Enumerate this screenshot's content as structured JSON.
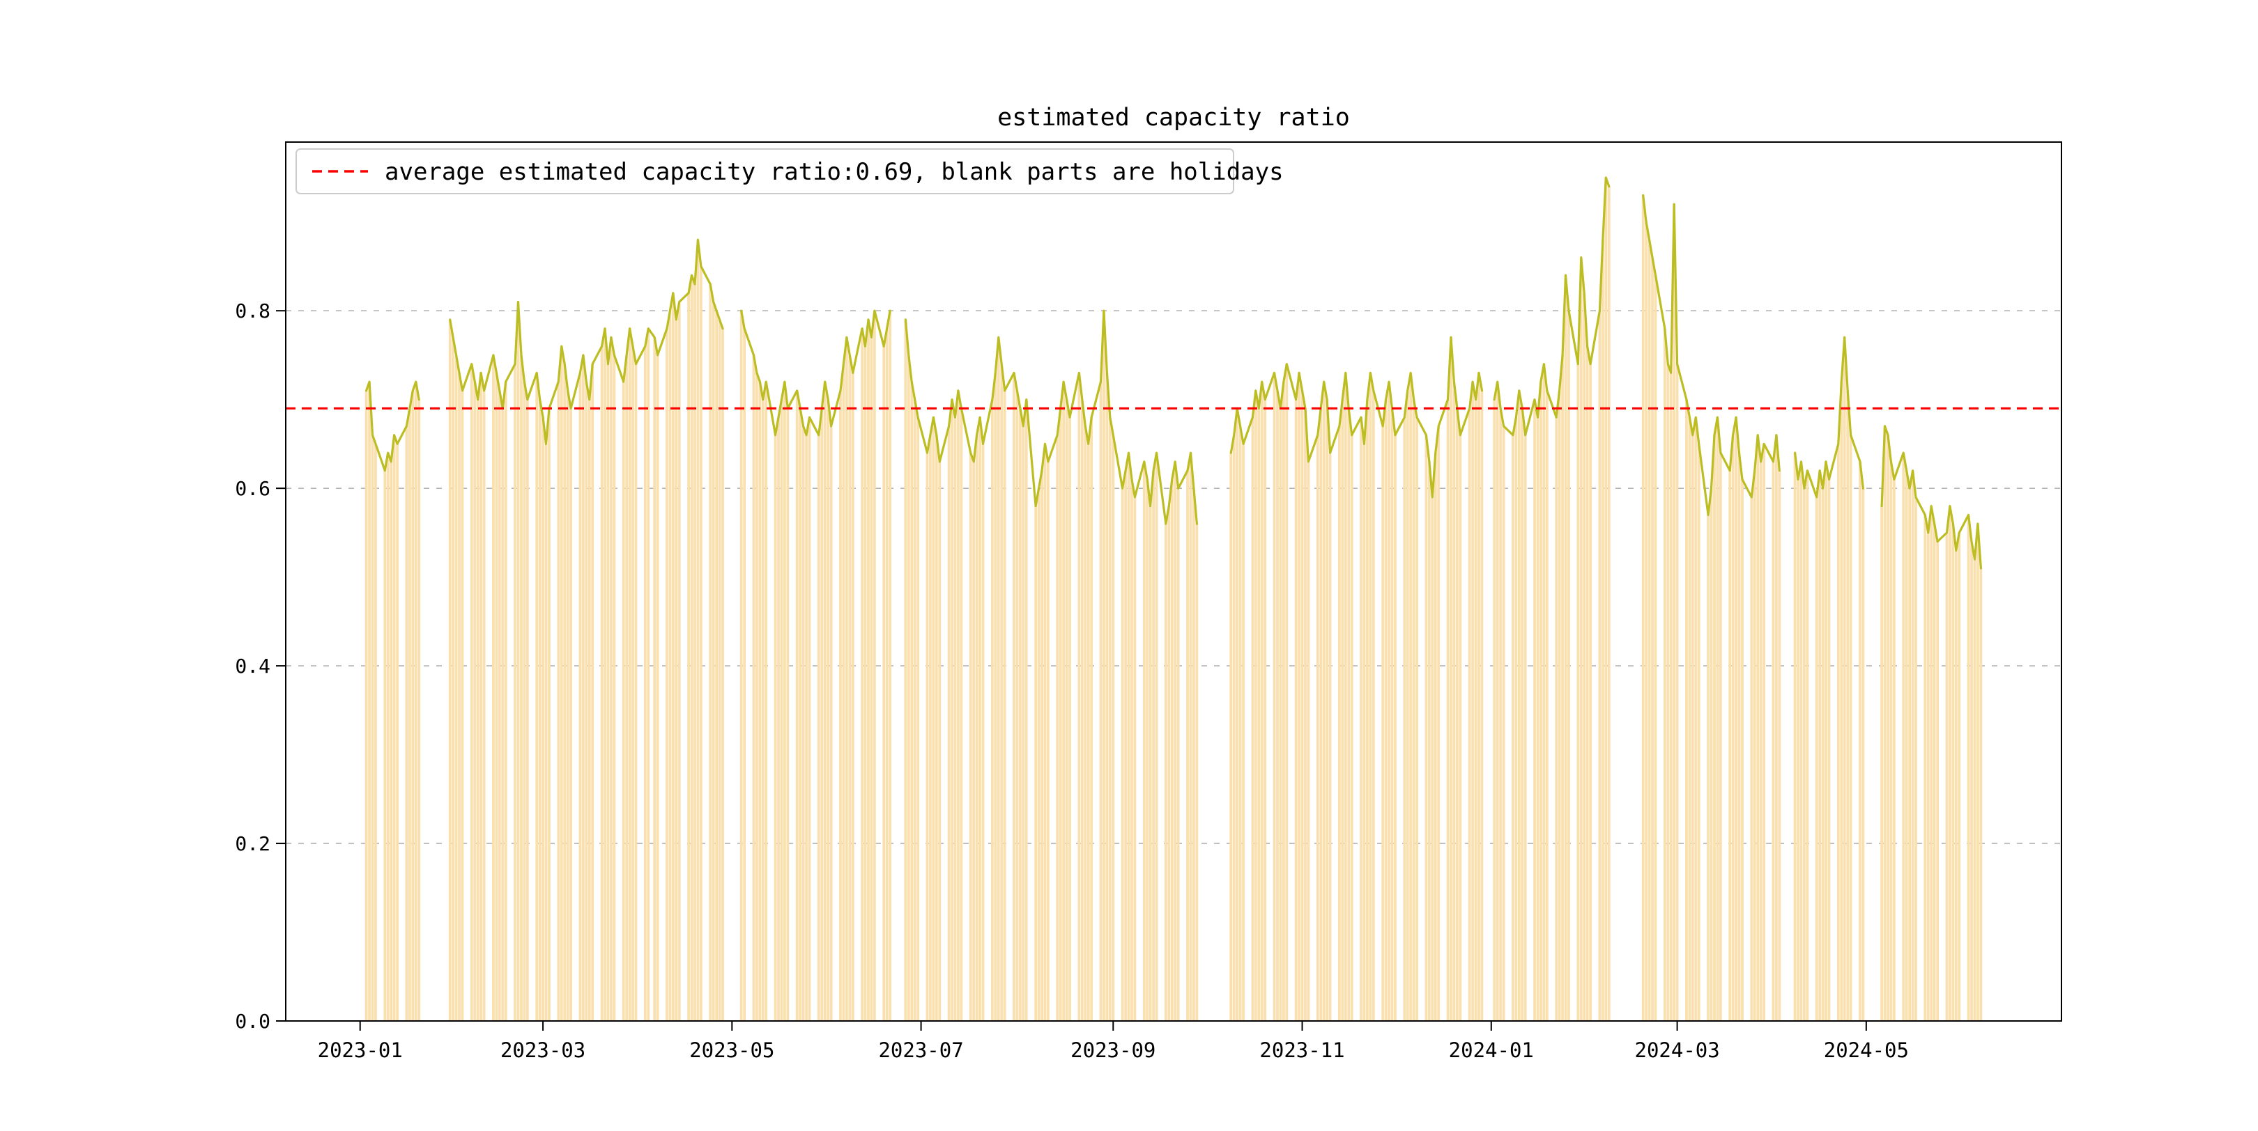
{
  "figure": {
    "background": "#ffffff"
  },
  "chart_data": {
    "type": "bar",
    "title": "estimated capacity ratio",
    "legend": {
      "label": "average estimated capacity ratio:0.69, blank parts are holidays",
      "position": "upper left",
      "sample_style": "red dashed line"
    },
    "average_line": {
      "value": 0.69,
      "color": "#ff0000",
      "linestyle": "dashed"
    },
    "bar_color": "#fae0ae",
    "line_color": "#bcbd22",
    "grid": {
      "visible": true,
      "axis": "y",
      "linestyle": "dashed",
      "color": "#b3b3b3"
    },
    "x_axis": {
      "tick_labels": [
        "2023-01",
        "2023-03",
        "2023-05",
        "2023-07",
        "2023-09",
        "2023-11",
        "2024-01",
        "2024-03",
        "2024-05"
      ],
      "range": [
        "2022-12-08",
        "2024-07-03"
      ]
    },
    "y_axis": {
      "tick_labels": [
        "0.0",
        "0.2",
        "0.4",
        "0.6",
        "0.8"
      ],
      "ticks": [
        0,
        0.2,
        0.4,
        0.6,
        0.8
      ],
      "range": [
        0,
        0.99
      ]
    },
    "series_unit": "daily estimated capacity ratio",
    "line_break_gap_days": 4,
    "segments": [
      {
        "start": "2023-01-03",
        "values": [
          0.71,
          0.72,
          0.66,
          0.65
        ]
      },
      {
        "start": "2023-01-09",
        "values": [
          0.62,
          0.64,
          0.63,
          0.66,
          0.65
        ]
      },
      {
        "start": "2023-01-16",
        "values": [
          0.67,
          0.69,
          0.71,
          0.72,
          0.7
        ]
      },
      {
        "start": "2023-01-30",
        "values": [
          0.79,
          0.77,
          0.75,
          0.73,
          0.71
        ]
      },
      {
        "start": "2023-02-06",
        "values": [
          0.74,
          0.72,
          0.7,
          0.73,
          0.71
        ]
      },
      {
        "start": "2023-02-13",
        "values": [
          0.75,
          0.73,
          0.71,
          0.69,
          0.72
        ]
      },
      {
        "start": "2023-02-20",
        "values": [
          0.74,
          0.81,
          0.75,
          0.72,
          0.7
        ]
      },
      {
        "start": "2023-02-27",
        "values": [
          0.73,
          0.7,
          0.68,
          0.65,
          0.69
        ]
      },
      {
        "start": "2023-03-06",
        "values": [
          0.72,
          0.76,
          0.74,
          0.71,
          0.69
        ]
      },
      {
        "start": "2023-03-13",
        "values": [
          0.73,
          0.75,
          0.72,
          0.7,
          0.74
        ]
      },
      {
        "start": "2023-03-20",
        "values": [
          0.76,
          0.78,
          0.74,
          0.77,
          0.75
        ]
      },
      {
        "start": "2023-03-27",
        "values": [
          0.72,
          0.75,
          0.78,
          0.76,
          0.74
        ]
      },
      {
        "start": "2023-04-03",
        "values": [
          0.76,
          0.78
        ]
      },
      {
        "start": "2023-04-06",
        "values": [
          0.77,
          0.75
        ]
      },
      {
        "start": "2023-04-10",
        "values": [
          0.78,
          0.8,
          0.82,
          0.79,
          0.81
        ]
      },
      {
        "start": "2023-04-17",
        "values": [
          0.82,
          0.84,
          0.83,
          0.88,
          0.85
        ]
      },
      {
        "start": "2023-04-24",
        "values": [
          0.83,
          0.81,
          0.8,
          0.79,
          0.78
        ]
      },
      {
        "start": "2023-05-04",
        "values": [
          0.8,
          0.78
        ]
      },
      {
        "start": "2023-05-08",
        "values": [
          0.75,
          0.73,
          0.72,
          0.7,
          0.72
        ]
      },
      {
        "start": "2023-05-15",
        "values": [
          0.66,
          0.68,
          0.7,
          0.72,
          0.69
        ]
      },
      {
        "start": "2023-05-22",
        "values": [
          0.71,
          0.69,
          0.67,
          0.66,
          0.68
        ]
      },
      {
        "start": "2023-05-29",
        "values": [
          0.66,
          0.69,
          0.72,
          0.7,
          0.67
        ]
      },
      {
        "start": "2023-06-05",
        "values": [
          0.71,
          0.74,
          0.77,
          0.75,
          0.73
        ]
      },
      {
        "start": "2023-06-12",
        "values": [
          0.78,
          0.76,
          0.79,
          0.77,
          0.8
        ]
      },
      {
        "start": "2023-06-19",
        "values": [
          0.76,
          0.78,
          0.8
        ]
      },
      {
        "start": "2023-06-26",
        "values": [
          0.79,
          0.75,
          0.72,
          0.7,
          0.68
        ]
      },
      {
        "start": "2023-07-03",
        "values": [
          0.64,
          0.66,
          0.68,
          0.66,
          0.63
        ]
      },
      {
        "start": "2023-07-10",
        "values": [
          0.67,
          0.7,
          0.68,
          0.71,
          0.69
        ]
      },
      {
        "start": "2023-07-17",
        "values": [
          0.64,
          0.63,
          0.66,
          0.68,
          0.65
        ]
      },
      {
        "start": "2023-07-24",
        "values": [
          0.7,
          0.73,
          0.77,
          0.74,
          0.71
        ]
      },
      {
        "start": "2023-07-31",
        "values": [
          0.73,
          0.71,
          0.69,
          0.67,
          0.7
        ]
      },
      {
        "start": "2023-08-07",
        "values": [
          0.58,
          0.6,
          0.62,
          0.65,
          0.63
        ]
      },
      {
        "start": "2023-08-14",
        "values": [
          0.66,
          0.69,
          0.72,
          0.7,
          0.68
        ]
      },
      {
        "start": "2023-08-21",
        "values": [
          0.73,
          0.7,
          0.67,
          0.65,
          0.68
        ]
      },
      {
        "start": "2023-08-28",
        "values": [
          0.72,
          0.8,
          0.73,
          0.68,
          0.66
        ]
      },
      {
        "start": "2023-09-04",
        "values": [
          0.6,
          0.62,
          0.64,
          0.61,
          0.59
        ]
      },
      {
        "start": "2023-09-11",
        "values": [
          0.63,
          0.61,
          0.58,
          0.62,
          0.64
        ]
      },
      {
        "start": "2023-09-18",
        "values": [
          0.56,
          0.58,
          0.61,
          0.63,
          0.6
        ]
      },
      {
        "start": "2023-09-25",
        "values": [
          0.62,
          0.64,
          0.6,
          0.56
        ]
      },
      {
        "start": "2023-10-09",
        "values": [
          0.64,
          0.66,
          0.69,
          0.67,
          0.65
        ]
      },
      {
        "start": "2023-10-16",
        "values": [
          0.68,
          0.71,
          0.69,
          0.72,
          0.7
        ]
      },
      {
        "start": "2023-10-23",
        "values": [
          0.73,
          0.71,
          0.69,
          0.72,
          0.74
        ]
      },
      {
        "start": "2023-10-30",
        "values": [
          0.7,
          0.73,
          0.71,
          0.69,
          0.63
        ]
      },
      {
        "start": "2023-11-06",
        "values": [
          0.66,
          0.69,
          0.72,
          0.7,
          0.64
        ]
      },
      {
        "start": "2023-11-13",
        "values": [
          0.67,
          0.7,
          0.73,
          0.69,
          0.66
        ]
      },
      {
        "start": "2023-11-20",
        "values": [
          0.68,
          0.65,
          0.7,
          0.73,
          0.71
        ]
      },
      {
        "start": "2023-11-27",
        "values": [
          0.67,
          0.7,
          0.72,
          0.69,
          0.66
        ]
      },
      {
        "start": "2023-12-04",
        "values": [
          0.68,
          0.71,
          0.73,
          0.7,
          0.68
        ]
      },
      {
        "start": "2023-12-11",
        "values": [
          0.66,
          0.63,
          0.59,
          0.64,
          0.67
        ]
      },
      {
        "start": "2023-12-18",
        "values": [
          0.7,
          0.77,
          0.72,
          0.69,
          0.66
        ]
      },
      {
        "start": "2023-12-25",
        "values": [
          0.69,
          0.72,
          0.7,
          0.73,
          0.71
        ]
      },
      {
        "start": "2024-01-02",
        "values": [
          0.7,
          0.72,
          0.69,
          0.67
        ]
      },
      {
        "start": "2024-01-08",
        "values": [
          0.66,
          0.68,
          0.71,
          0.69,
          0.66
        ]
      },
      {
        "start": "2024-01-15",
        "values": [
          0.7,
          0.68,
          0.72,
          0.74,
          0.71
        ]
      },
      {
        "start": "2024-01-22",
        "values": [
          0.68,
          0.71,
          0.75,
          0.84,
          0.8
        ]
      },
      {
        "start": "2024-01-29",
        "values": [
          0.74,
          0.86,
          0.82,
          0.76,
          0.74
        ]
      },
      {
        "start": "2024-02-05",
        "values": [
          0.8,
          0.88,
          0.95,
          0.94
        ]
      },
      {
        "start": "2024-02-19",
        "values": [
          0.93,
          0.9,
          0.88,
          0.86,
          0.84
        ]
      },
      {
        "start": "2024-02-26",
        "values": [
          0.78,
          0.74,
          0.73,
          0.92,
          0.74
        ]
      },
      {
        "start": "2024-03-04",
        "values": [
          0.7,
          0.68,
          0.66,
          0.68,
          0.65
        ]
      },
      {
        "start": "2024-03-11",
        "values": [
          0.57,
          0.6,
          0.66,
          0.68,
          0.64
        ]
      },
      {
        "start": "2024-03-18",
        "values": [
          0.62,
          0.66,
          0.68,
          0.64,
          0.61
        ]
      },
      {
        "start": "2024-03-25",
        "values": [
          0.59,
          0.62,
          0.66,
          0.63,
          0.65
        ]
      },
      {
        "start": "2024-04-01",
        "values": [
          0.63,
          0.66,
          0.62
        ]
      },
      {
        "start": "2024-04-08",
        "values": [
          0.64,
          0.61,
          0.63,
          0.6,
          0.62
        ]
      },
      {
        "start": "2024-04-15",
        "values": [
          0.59,
          0.62,
          0.6,
          0.63,
          0.61
        ]
      },
      {
        "start": "2024-04-22",
        "values": [
          0.65,
          0.72,
          0.77,
          0.71,
          0.66
        ]
      },
      {
        "start": "2024-04-29",
        "values": [
          0.63,
          0.6
        ]
      },
      {
        "start": "2024-05-06",
        "values": [
          0.58,
          0.67,
          0.66,
          0.63,
          0.61
        ]
      },
      {
        "start": "2024-05-13",
        "values": [
          0.64,
          0.62,
          0.6,
          0.62,
          0.59
        ]
      },
      {
        "start": "2024-05-20",
        "values": [
          0.57,
          0.55,
          0.58,
          0.56,
          0.54
        ]
      },
      {
        "start": "2024-05-27",
        "values": [
          0.55,
          0.58,
          0.56,
          0.53,
          0.55
        ]
      },
      {
        "start": "2024-06-03",
        "values": [
          0.57,
          0.54,
          0.52,
          0.56,
          0.51
        ]
      }
    ]
  }
}
